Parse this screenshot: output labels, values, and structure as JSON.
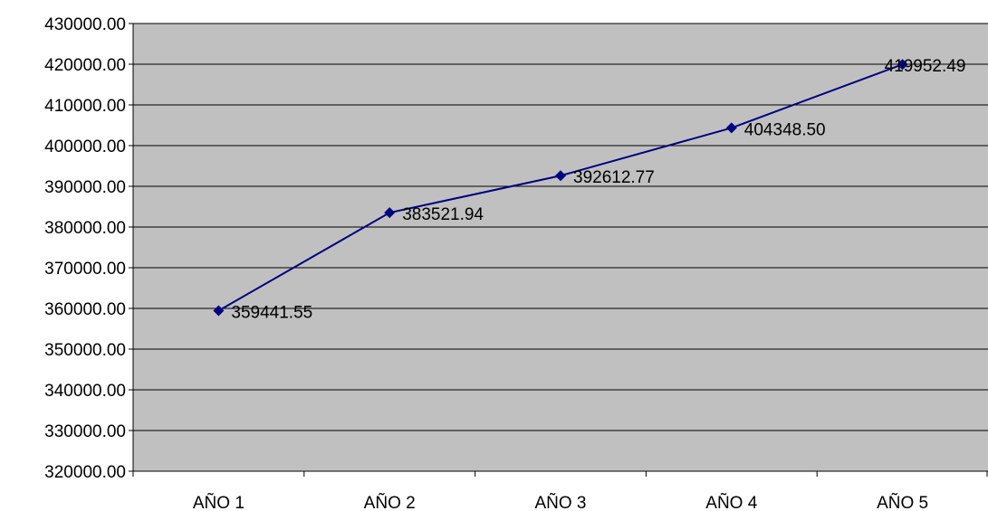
{
  "chart_data": {
    "type": "line",
    "categories": [
      "AÑO 1",
      "AÑO 2",
      "AÑO 3",
      "AÑO 4",
      "AÑO 5"
    ],
    "series": [
      {
        "values": [
          359441.55,
          383521.94,
          392612.77,
          404348.5,
          419952.49
        ],
        "data_labels": [
          "359441.55",
          "383521.94",
          "392612.77",
          "404348.50",
          "419952.49"
        ],
        "color": "#000080",
        "marker": "diamond"
      }
    ],
    "y_ticks": [
      "320000.00",
      "330000.00",
      "340000.00",
      "350000.00",
      "360000.00",
      "370000.00",
      "380000.00",
      "390000.00",
      "400000.00",
      "410000.00",
      "420000.00",
      "430000.00"
    ],
    "ylim": [
      320000,
      430000
    ],
    "y_step": 10000,
    "grid": "horizontal",
    "legend": "none",
    "plot_background": "#C0C0C0",
    "gridline_color": "#000000",
    "title": "",
    "xlabel": "",
    "ylabel": ""
  }
}
